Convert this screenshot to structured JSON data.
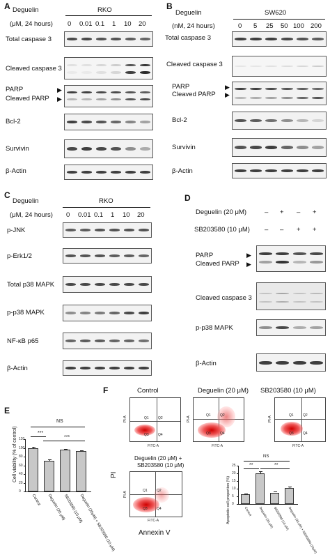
{
  "panel_letters": [
    "A",
    "B",
    "C",
    "D",
    "E",
    "F"
  ],
  "panelA": {
    "drug": "Deguelin",
    "cell": "RKO",
    "conc_label": "(μM, 24 hours)",
    "concs": [
      "0",
      "0.01",
      "0.1",
      "1",
      "10",
      "20"
    ],
    "rows": [
      "Total caspase 3",
      "Cleaved caspase 3",
      "PARP",
      "Cleaved PARP",
      "Bcl-2",
      "Survivin",
      "β-Actin"
    ]
  },
  "panelB": {
    "drug": "Deguelin",
    "cell": "SW620",
    "conc_label": "(nM, 24 hours)",
    "concs": [
      "0",
      "5",
      "25",
      "50",
      "100",
      "200"
    ],
    "rows": [
      "Total caspase 3",
      "Cleaved caspase 3",
      "PARP",
      "Cleaved PARP",
      "Bcl-2",
      "Survivin",
      "β-Actin"
    ]
  },
  "panelC": {
    "drug": "Deguelin",
    "cell": "RKO",
    "conc_label": "(μM, 24 hours)",
    "concs": [
      "0",
      "0.01",
      "0.1",
      "1",
      "10",
      "20"
    ],
    "rows": [
      "p-JNK",
      "p-Erk1/2",
      "Total p38 MAPK",
      "p-p38 MAPK",
      "NF-κB p65",
      "β-Actin"
    ]
  },
  "panelD": {
    "treat1": "Deguelin (20 μM)",
    "treat2": "SB203580 (10 μM)",
    "treat1_signs": [
      "–",
      "+",
      "–",
      "+"
    ],
    "treat2_signs": [
      "–",
      "–",
      "+",
      "+"
    ],
    "rows": [
      "PARP",
      "Cleaved PARP",
      "Cleaved caspase 3",
      "p-p38 MAPK",
      "β-Actin"
    ]
  },
  "panelE": {
    "ylabel": "Cell viability (% of control)",
    "ns": "NS",
    "sig1": "***",
    "sig2": "***",
    "yticks": [
      "0",
      "20",
      "40",
      "60",
      "80",
      "100",
      "120"
    ],
    "categories": [
      "Control",
      "Deguelin (20 μM)",
      "SB203580 (10 μM)",
      "Deguelin (20μM) + SB203580 (10 μM)"
    ]
  },
  "panelF": {
    "titles": [
      "Control",
      "Deguelin (20 μM)",
      "SB203580 (10 μM)"
    ],
    "title4a": "Deguelin (20 μM) +",
    "title4b": "SB203580 (10 μM)",
    "quadrants": [
      "Q1",
      "Q2",
      "Q3",
      "Q4"
    ],
    "axis_x": "FITC-A",
    "axis_y": "PI-A",
    "big_y": "PI",
    "big_x": "Annexin V",
    "bar_ylabel": "Apoptotic cell proportion (%)",
    "ns": "NS",
    "sig1": "**",
    "sig2": "**",
    "bar_yticks": [
      "0",
      "5",
      "10",
      "15",
      "20",
      "25"
    ],
    "bar_categories": [
      "Control",
      "Deguelin (20 μM)",
      "SB203580 (10 μM)",
      "Deguelin (20 μM) + SB203580 (10μM)"
    ]
  },
  "chart_data": [
    {
      "type": "bar",
      "categories": [
        "Control",
        "Deguelin (20 μM)",
        "SB203580 (10 μM)",
        "Deguelin (20μM) + SB203580 (10 μM)"
      ],
      "values": [
        100,
        70,
        96,
        93
      ],
      "errors": [
        2,
        3,
        1.5,
        1.5
      ],
      "ylabel": "Cell viability (% of control)",
      "ylim": [
        0,
        120
      ]
    },
    {
      "type": "bar",
      "categories": [
        "Control",
        "Deguelin (20 μM)",
        "SB203580 (10 μM)",
        "Deguelin (20 μM) + SB203580 (10μM)"
      ],
      "values": [
        6.5,
        20,
        7.5,
        10.5
      ],
      "errors": [
        0.5,
        1.2,
        0.8,
        0.8
      ],
      "ylabel": "Apoptotic cell proportion (%)",
      "ylim": [
        0,
        25
      ]
    }
  ]
}
